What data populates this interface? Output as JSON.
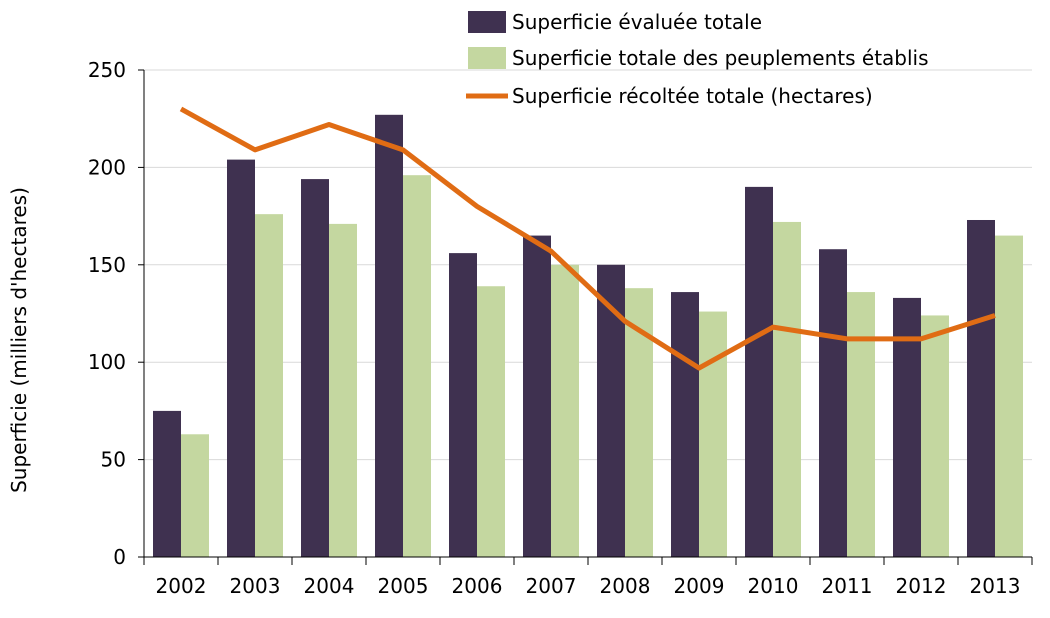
{
  "chart_data": {
    "type": "bar",
    "categories": [
      "2002",
      "2003",
      "2004",
      "2005",
      "2006",
      "2007",
      "2008",
      "2009",
      "2010",
      "2011",
      "2012",
      "2013"
    ],
    "series": [
      {
        "name": "Superficie évaluée totale",
        "kind": "bar",
        "color": "#3f3150",
        "values": [
          75,
          204,
          194,
          227,
          156,
          165,
          150,
          136,
          190,
          158,
          133,
          173
        ]
      },
      {
        "name": "Superficie totale des peuplements établis",
        "kind": "bar",
        "color": "#c4d7a0",
        "values": [
          63,
          176,
          171,
          196,
          139,
          150,
          138,
          126,
          172,
          136,
          124,
          165
        ]
      },
      {
        "name": "Superficie récoltée totale (hectares)",
        "kind": "line",
        "color": "#e06c14",
        "values": [
          230,
          209,
          222,
          209,
          180,
          157,
          121,
          97,
          118,
          112,
          112,
          124
        ]
      }
    ],
    "title": "",
    "xlabel": "",
    "ylabel": "Superficie (milliers d'hectares)",
    "ylim": [
      0,
      250
    ],
    "yticks": [
      "0",
      "50",
      "100",
      "150",
      "200",
      "250"
    ],
    "grid": true,
    "legend_position": "top"
  }
}
